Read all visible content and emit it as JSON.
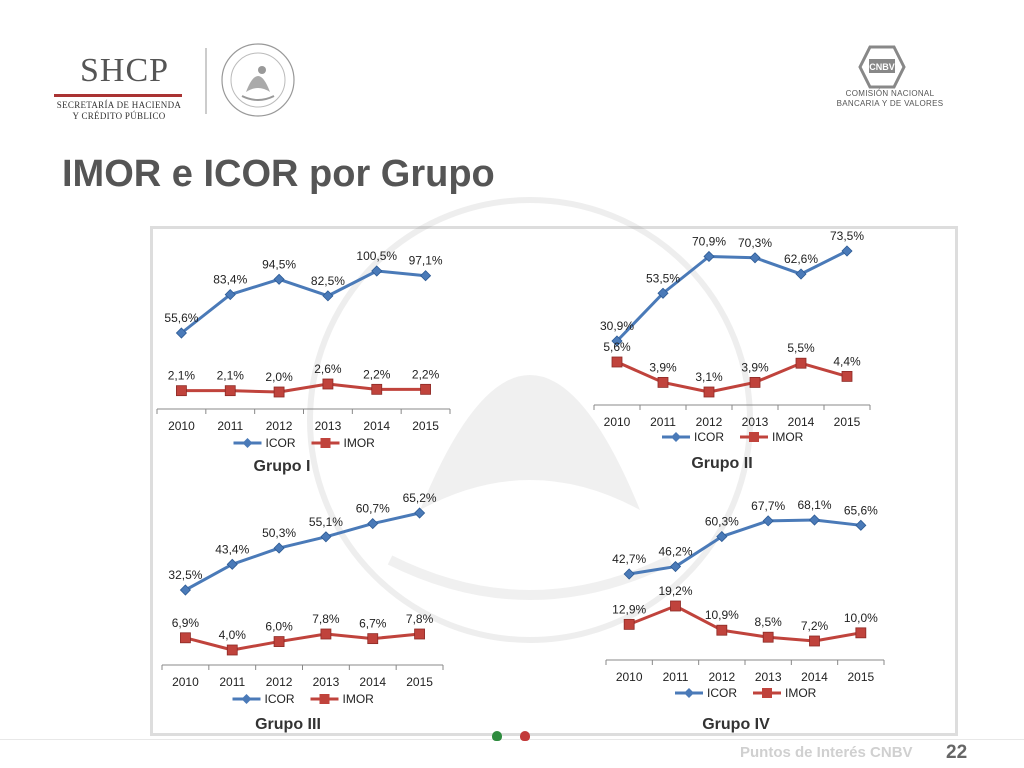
{
  "header": {
    "shcp": {
      "name": "SHCP",
      "line1": "SECRETARÍA DE HACIENDA",
      "line2": "Y CRÉDITO PÚBLICO"
    },
    "cnbv": {
      "abbr": "CNBV",
      "line1": "COMISIÓN NACIONAL",
      "line2": "BANCARIA Y DE VALORES"
    }
  },
  "slide": {
    "title": "IMOR e ICOR por Grupo"
  },
  "footer": {
    "text": "Puntos de Interés CNBV",
    "page": "22"
  },
  "colors": {
    "icor": "#4a7ab8",
    "imor": "#c0433c",
    "axis": "#888888",
    "title": "#555555"
  },
  "chart_data": [
    {
      "type": "line",
      "title": "Grupo I",
      "categories": [
        "2010",
        "2011",
        "2012",
        "2013",
        "2014",
        "2015"
      ],
      "series": [
        {
          "name": "ICOR",
          "values": [
            55.6,
            83.4,
            94.5,
            82.5,
            100.5,
            97.1
          ],
          "labels": [
            "55,6%",
            "83,4%",
            "94,5%",
            "82,5%",
            "100,5%",
            "97,1%"
          ]
        },
        {
          "name": "IMOR",
          "values": [
            2.1,
            2.1,
            2.0,
            2.6,
            2.2,
            2.2
          ],
          "labels": [
            "2,1%",
            "2,1%",
            "2,0%",
            "2,6%",
            "2,2%",
            "2,2%"
          ]
        }
      ],
      "legend": [
        "ICOR",
        "IMOR"
      ]
    },
    {
      "type": "line",
      "title": "Grupo II",
      "categories": [
        "2010",
        "2011",
        "2012",
        "2013",
        "2014",
        "2015"
      ],
      "series": [
        {
          "name": "ICOR",
          "values": [
            30.9,
            53.5,
            70.9,
            70.3,
            62.6,
            73.5
          ],
          "labels": [
            "30,9%",
            "53,5%",
            "70,9%",
            "70,3%",
            "62,6%",
            "73,5%"
          ]
        },
        {
          "name": "IMOR",
          "values": [
            5.6,
            3.9,
            3.1,
            3.9,
            5.5,
            4.4
          ],
          "labels": [
            "5,6%",
            "3,9%",
            "3,1%",
            "3,9%",
            "5,5%",
            "4,4%"
          ]
        }
      ],
      "legend": [
        "ICOR",
        "IMOR"
      ]
    },
    {
      "type": "line",
      "title": "Grupo III",
      "categories": [
        "2010",
        "2011",
        "2012",
        "2013",
        "2014",
        "2015"
      ],
      "series": [
        {
          "name": "ICOR",
          "values": [
            32.5,
            43.4,
            50.3,
            55.1,
            60.7,
            65.2
          ],
          "labels": [
            "32,5%",
            "43,4%",
            "50,3%",
            "55,1%",
            "60,7%",
            "65,2%"
          ]
        },
        {
          "name": "IMOR",
          "values": [
            6.9,
            4.0,
            6.0,
            7.8,
            6.7,
            7.8
          ],
          "labels": [
            "6,9%",
            "4,0%",
            "6,0%",
            "7,8%",
            "6,7%",
            "7,8%"
          ]
        }
      ],
      "legend": [
        "ICOR",
        "IMOR"
      ]
    },
    {
      "type": "line",
      "title": "Grupo IV",
      "categories": [
        "2010",
        "2011",
        "2012",
        "2013",
        "2014",
        "2015"
      ],
      "series": [
        {
          "name": "ICOR",
          "values": [
            42.7,
            46.2,
            60.3,
            67.7,
            68.1,
            65.6
          ],
          "labels": [
            "42,7%",
            "46,2%",
            "60,3%",
            "67,7%",
            "68,1%",
            "65,6%"
          ]
        },
        {
          "name": "IMOR",
          "values": [
            12.9,
            19.2,
            10.9,
            8.5,
            7.2,
            10.0
          ],
          "labels": [
            "12,9%",
            "19,2%",
            "10,9%",
            "8,5%",
            "7,2%",
            "10,0%"
          ]
        }
      ],
      "legend": [
        "ICOR",
        "IMOR"
      ]
    }
  ]
}
